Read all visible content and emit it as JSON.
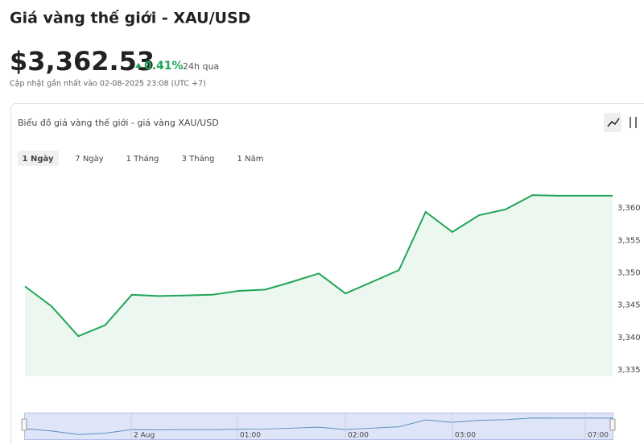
{
  "header": {
    "title": "Giá vàng thế giới - XAU/USD",
    "price": "$3,362.53",
    "change": "0.41%",
    "period": "24h qua",
    "updated": "Cập nhật gần nhất vào 02-08-2025 23:08 (UTC +7)"
  },
  "card": {
    "title": "Biểu đồ giá vàng thế giới - giá vàng XAU/USD",
    "tabs": [
      "1 Ngày",
      "7 Ngày",
      "1 Tháng",
      "3 Tháng",
      "1 Năm"
    ]
  },
  "chart_data": {
    "type": "line",
    "categories": [
      null,
      null,
      null,
      null,
      null,
      null,
      null,
      null,
      null,
      null,
      null,
      null,
      null,
      null,
      null,
      null,
      null,
      null,
      null,
      null,
      null,
      null,
      null
    ],
    "series": [
      {
        "name": "XAU/USD",
        "color": "#21a559",
        "values": [
          3347.9,
          3344.8,
          3340.2,
          3341.9,
          3346.6,
          3346.4,
          3346.5,
          3346.6,
          3347.2,
          3347.4,
          3348.6,
          3349.9,
          3346.8,
          3348.6,
          3350.4,
          3359.4,
          3356.3,
          3358.9,
          3359.8,
          3362.0,
          3361.9,
          3361.9,
          3361.9
        ]
      }
    ],
    "ylim": [
      3334,
      3366
    ],
    "yticks": [
      {
        "value": 3335,
        "label": "3,335"
      },
      {
        "value": 3340,
        "label": "3,340"
      },
      {
        "value": 3345,
        "label": "3,345"
      },
      {
        "value": 3350,
        "label": "3,350"
      },
      {
        "value": 3355,
        "label": "3,355"
      },
      {
        "value": 3360,
        "label": "3,360"
      }
    ],
    "grid": false,
    "navigator_labels": [
      "2 Aug",
      "01:00",
      "02:00",
      "03:00",
      "07:00"
    ]
  }
}
